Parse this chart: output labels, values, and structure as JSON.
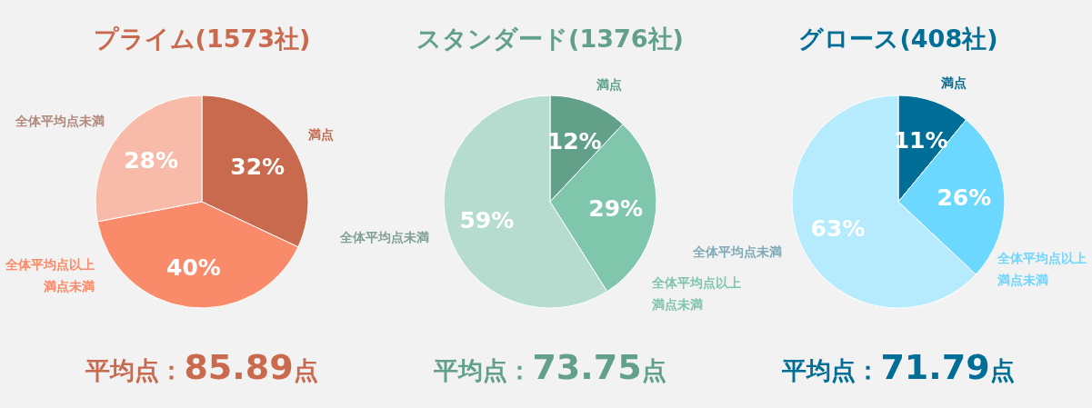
{
  "chart_data": [
    {
      "type": "pie",
      "title": "プライム(1573社)",
      "categories": [
        "満点",
        "全体平均点以上満点未満",
        "全体平均点未満"
      ],
      "values": [
        32,
        40,
        28
      ],
      "colors": [
        "#c96a4e",
        "#f98b6a",
        "#f9bba9"
      ],
      "value_labels": [
        "32%",
        "40%",
        "28%"
      ],
      "annotations": [
        "平均点：85.89点"
      ]
    },
    {
      "type": "pie",
      "title": "スタンダード(1376社)",
      "categories": [
        "満点",
        "全体平均点以上満点未満",
        "全体平均点未満"
      ],
      "values": [
        12,
        29,
        59
      ],
      "colors": [
        "#62a08a",
        "#7fc6ac",
        "#b5dccf"
      ],
      "value_labels": [
        "12%",
        "29%",
        "59%"
      ],
      "annotations": [
        "平均点：73.75点"
      ]
    },
    {
      "type": "pie",
      "title": "グロース(408社)",
      "categories": [
        "満点",
        "全体平均点以上満点未満",
        "全体平均点未満"
      ],
      "values": [
        11,
        26,
        63
      ],
      "colors": [
        "#006e96",
        "#6dd8ff",
        "#b5ebfc"
      ],
      "value_labels": [
        "11%",
        "26%",
        "63%"
      ],
      "annotations": [
        "平均点：71.79点"
      ]
    }
  ]
}
